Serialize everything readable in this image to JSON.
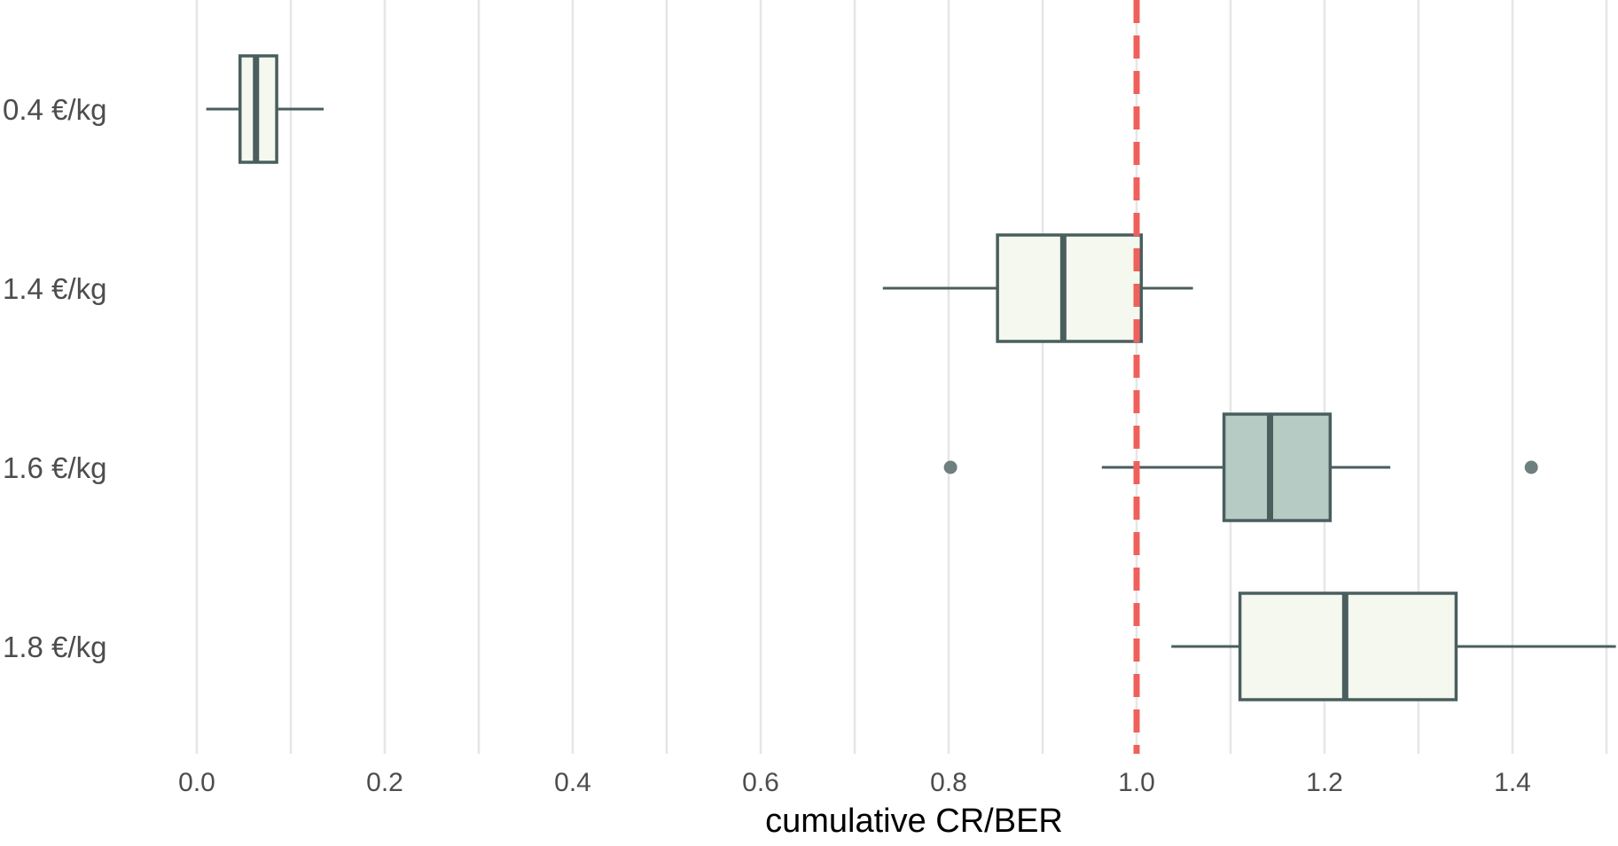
{
  "chart_data": {
    "type": "boxplot",
    "orientation": "horizontal",
    "title": "",
    "xlabel": "cumulative CR/BER",
    "ylabel": "",
    "xlim": [
      -0.05,
      1.51
    ],
    "x_ticks": [
      0.0,
      0.2,
      0.4,
      0.6,
      0.8,
      1.0,
      1.2,
      1.4
    ],
    "x_tick_labels": [
      "0.0",
      "0.2",
      "0.4",
      "0.6",
      "0.8",
      "1.0",
      "1.2",
      "1.4"
    ],
    "grid": true,
    "reference_line": {
      "x": 1.0,
      "style": "dashed",
      "color": "#f0605a"
    },
    "categories": [
      "0.4 €/kg",
      "1.4 €/kg",
      "1.6 €/kg",
      "1.8 €/kg"
    ],
    "boxes": [
      {
        "category": "0.4 €/kg",
        "whisker_low": 0.01,
        "q1": 0.046,
        "median": 0.063,
        "q3": 0.085,
        "whisker_high": 0.135,
        "outliers": [],
        "fill": "#f4f8ee"
      },
      {
        "category": "1.4 €/kg",
        "whisker_low": 0.73,
        "q1": 0.852,
        "median": 0.922,
        "q3": 1.005,
        "whisker_high": 1.06,
        "outliers": [],
        "fill": "#f4f8ee"
      },
      {
        "category": "1.6 €/kg",
        "whisker_low": 0.963,
        "q1": 1.093,
        "median": 1.142,
        "q3": 1.206,
        "whisker_high": 1.27,
        "outliers": [
          0.802,
          1.42
        ],
        "fill": "#b6cbc4"
      },
      {
        "category": "1.8 €/kg",
        "whisker_low": 1.037,
        "q1": 1.11,
        "median": 1.222,
        "q3": 1.34,
        "whisker_high": 1.51,
        "outliers": [],
        "fill": "#f4f8ee"
      }
    ],
    "colors": {
      "box_stroke": "#4a5e5e",
      "outlier": "#6e7f80",
      "grid": "#e6e6e6"
    }
  }
}
